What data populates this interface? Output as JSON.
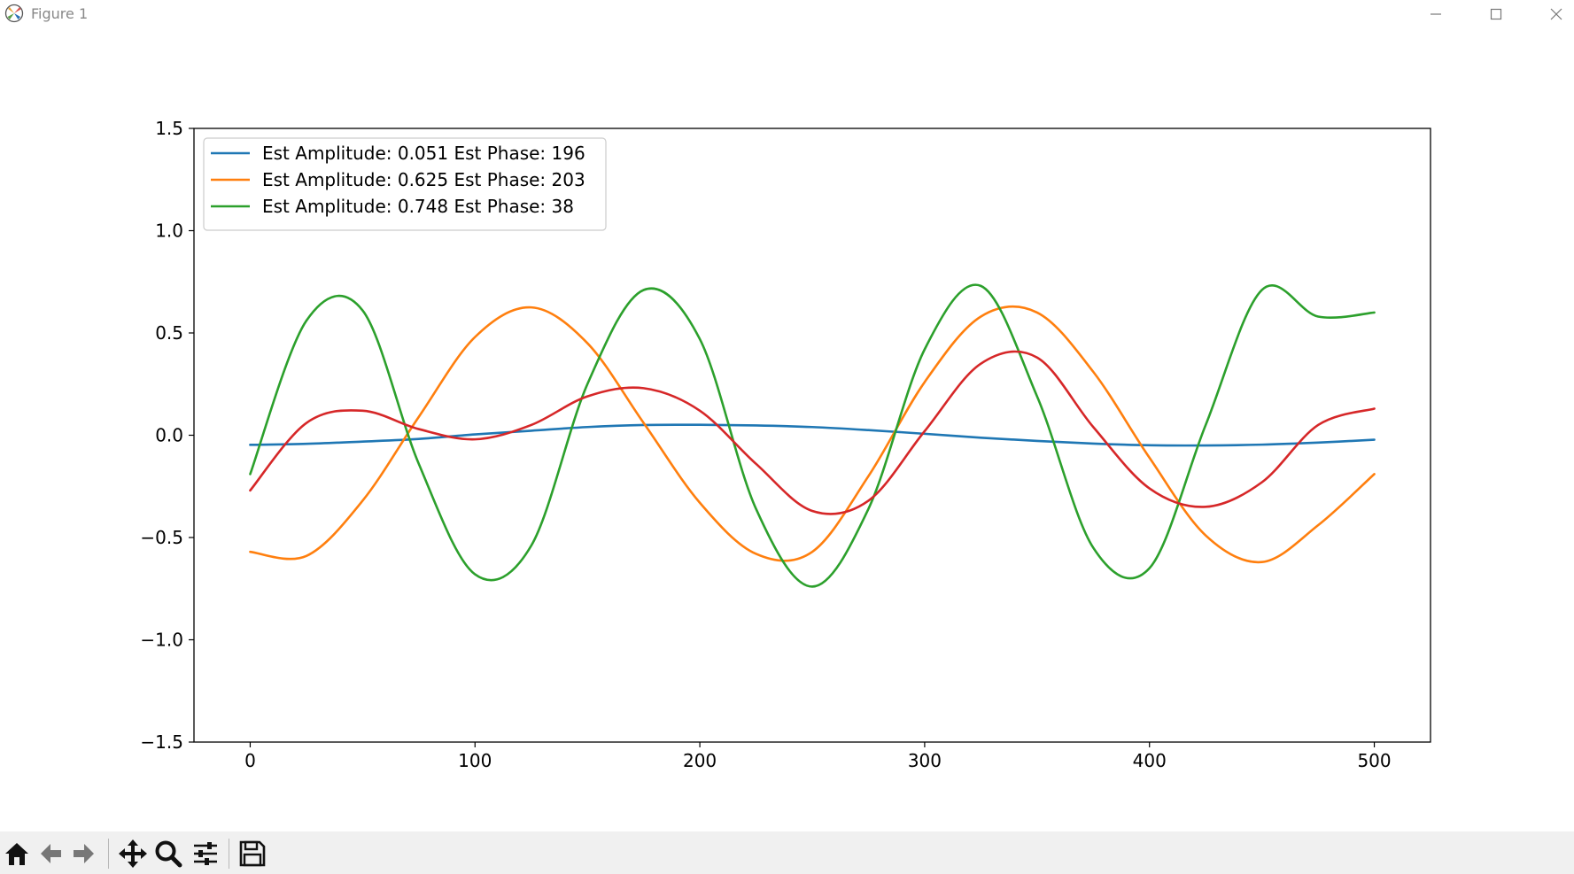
{
  "window": {
    "title": "Figure 1",
    "icon": "matplotlib-icon",
    "controls": [
      "minimize-icon",
      "maximize-icon",
      "close-icon"
    ]
  },
  "toolbar": {
    "buttons": [
      {
        "name": "home-button",
        "icon": "home-icon"
      },
      {
        "name": "back-button",
        "icon": "arrow-left-icon"
      },
      {
        "name": "forward-button",
        "icon": "arrow-right-icon"
      },
      {
        "name": "pan-button",
        "icon": "move-icon"
      },
      {
        "name": "zoom-button",
        "icon": "magnifier-icon"
      },
      {
        "name": "configure-subplots-button",
        "icon": "sliders-icon"
      },
      {
        "name": "save-button",
        "icon": "floppy-disk-icon"
      }
    ]
  },
  "chart_data": {
    "type": "line",
    "title": "",
    "xlabel": "",
    "ylabel": "",
    "xlim": [
      -25,
      525
    ],
    "ylim": [
      -1.5,
      1.5
    ],
    "xticks": [
      0,
      100,
      200,
      300,
      400,
      500
    ],
    "yticks": [
      -1.5,
      -1.0,
      -0.5,
      0.0,
      0.5,
      1.0,
      1.5
    ],
    "ytick_labels": [
      "−1.5",
      "−1.0",
      "−0.5",
      "0.0",
      "0.5",
      "1.0",
      "1.5"
    ],
    "grid": false,
    "legend_position": "upper-left",
    "x": [
      0,
      25,
      50,
      75,
      100,
      125,
      150,
      175,
      200,
      225,
      250,
      275,
      300,
      325,
      350,
      375,
      400,
      425,
      450,
      475,
      500
    ],
    "series": [
      {
        "name": "Est Amplitude: 0.051 Est Phase: 196",
        "color": "#1f77b4",
        "in_legend": true,
        "values": [
          -0.047,
          -0.042,
          -0.031,
          -0.018,
          0.004,
          0.022,
          0.04,
          0.05,
          0.051,
          0.048,
          0.04,
          0.025,
          0.007,
          -0.012,
          -0.028,
          -0.041,
          -0.049,
          -0.05,
          -0.046,
          -0.036,
          -0.022
        ]
      },
      {
        "name": "Est Amplitude: 0.625 Est Phase: 203",
        "color": "#ff7f0e",
        "in_legend": true,
        "values": [
          -0.57,
          -0.59,
          -0.32,
          0.09,
          0.48,
          0.625,
          0.45,
          0.06,
          -0.33,
          -0.58,
          -0.57,
          -0.2,
          0.26,
          0.58,
          0.6,
          0.31,
          -0.11,
          -0.49,
          -0.62,
          -0.44,
          -0.19
        ]
      },
      {
        "name": "Est Amplitude: 0.748 Est Phase: 38",
        "color": "#2ca02c",
        "in_legend": true,
        "values": [
          -0.19,
          0.56,
          0.61,
          -0.14,
          -0.68,
          -0.54,
          0.25,
          0.71,
          0.47,
          -0.36,
          -0.74,
          -0.36,
          0.42,
          0.73,
          0.19,
          -0.55,
          -0.65,
          0.05,
          0.71,
          0.58,
          0.6
        ]
      },
      {
        "name": "",
        "color": "#d62728",
        "in_legend": false,
        "values": [
          -0.27,
          0.06,
          0.12,
          0.03,
          -0.02,
          0.05,
          0.19,
          0.23,
          0.12,
          -0.14,
          -0.37,
          -0.32,
          0.02,
          0.35,
          0.38,
          0.04,
          -0.26,
          -0.35,
          -0.23,
          0.05,
          0.13
        ]
      }
    ]
  }
}
